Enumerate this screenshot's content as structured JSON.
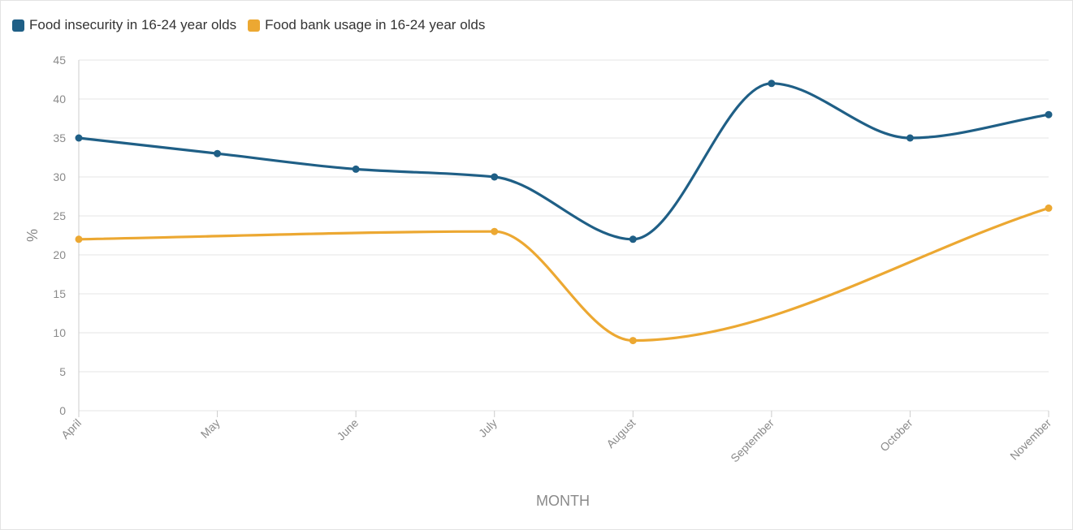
{
  "chart_data": {
    "type": "line",
    "title": "",
    "xlabel": "MONTH",
    "ylabel": "%",
    "categories": [
      "April",
      "May",
      "June",
      "July",
      "August",
      "September",
      "October",
      "November"
    ],
    "ylim": [
      0,
      45
    ],
    "yticks": [
      0,
      5,
      10,
      15,
      20,
      25,
      30,
      35,
      40,
      45
    ],
    "grid": true,
    "legend_position": "top-left",
    "series": [
      {
        "name": "Food insecurity in 16-24 year olds",
        "color": "#1f5f86",
        "values": [
          35,
          33,
          31,
          30,
          22,
          42,
          35,
          38
        ]
      },
      {
        "name": "Food bank usage in 16-24 year olds",
        "color": "#eca832",
        "values": [
          22,
          null,
          null,
          23,
          9,
          null,
          null,
          26
        ]
      }
    ]
  }
}
